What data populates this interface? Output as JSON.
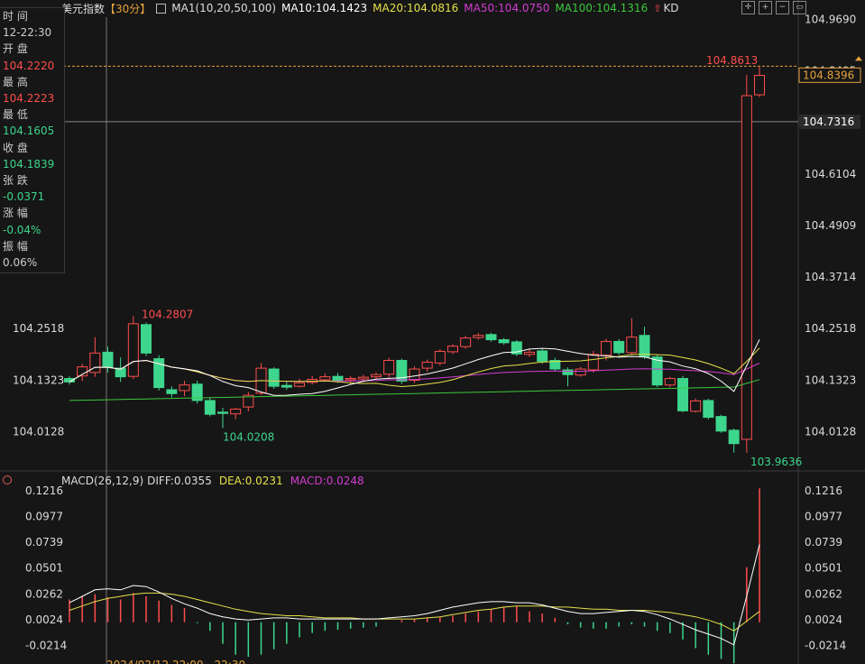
{
  "header": {
    "instrument": "美元指数",
    "period": "【30分】",
    "ma_label": "MA1(10,20,50,100)",
    "ma10": "MA10:104.1423",
    "ma20": "MA20:104.0816",
    "ma50": "MA50:104.0750",
    "ma100": "MA100:104.1316",
    "kd": "KD"
  },
  "info_panel": {
    "time_label": "时 间",
    "time_value": "12-22:30",
    "open_label": "开 盘",
    "open_value": "104.2220",
    "high_label": "最 高",
    "high_value": "104.2223",
    "low_label": "最 低",
    "low_value": "104.1605",
    "close_label": "收 盘",
    "close_value": "104.1839",
    "change_label": "张 跌",
    "change_value": "-0.0371",
    "pct_label": "涨 幅",
    "pct_value": "-0.04%",
    "amp_label": "振 幅",
    "amp_value": "0.06%"
  },
  "macd_header": {
    "label": "MACD(26,12,9)",
    "diff": "DIFF:0.0355",
    "dea": "DEA:0.0231",
    "macd": "MACD:0.0248"
  },
  "bottom_time": "2024/02/12 22:00 - 22:30",
  "colors": {
    "up": "#ff4d4d",
    "down": "#3dd68c",
    "ma10": "#ffffff",
    "ma20": "#e6e04a",
    "ma50": "#d23cd2",
    "ma100": "#3cc83c",
    "bg": "#161616"
  },
  "chart_data": {
    "type": "candlestick",
    "y_axis_ticks": [
      "104.9690",
      "104.8495",
      "104.7300",
      "104.6104",
      "104.4909",
      "104.3714",
      "104.2518",
      "104.1323",
      "104.0128"
    ],
    "left_axis_ticks": [
      "104.2518",
      "104.1323",
      "104.0128"
    ],
    "ylim": [
      103.93,
      104.97
    ],
    "price_tag_current": "104.8396",
    "price_tag_crosshair": "104.7316",
    "annotations": [
      {
        "text": "104.2807",
        "type": "high"
      },
      {
        "text": "104.0208",
        "type": "low"
      },
      {
        "text": "104.8613",
        "type": "high"
      },
      {
        "text": "103.9636",
        "type": "low"
      }
    ],
    "candles": [
      {
        "o": 104.136,
        "c": 104.128,
        "h": 104.141,
        "l": 104.122
      },
      {
        "o": 104.142,
        "c": 104.163,
        "h": 104.17,
        "l": 104.13
      },
      {
        "o": 104.15,
        "c": 104.195,
        "h": 104.232,
        "l": 104.14
      },
      {
        "o": 104.197,
        "c": 104.162,
        "h": 104.21,
        "l": 104.15
      },
      {
        "o": 104.16,
        "c": 104.14,
        "h": 104.185,
        "l": 104.128
      },
      {
        "o": 104.141,
        "c": 104.263,
        "h": 104.281,
        "l": 104.135
      },
      {
        "o": 104.261,
        "c": 104.195,
        "h": 104.266,
        "l": 104.188
      },
      {
        "o": 104.182,
        "c": 104.115,
        "h": 104.19,
        "l": 104.108
      },
      {
        "o": 104.11,
        "c": 104.101,
        "h": 104.118,
        "l": 104.092
      },
      {
        "o": 104.108,
        "c": 104.121,
        "h": 104.131,
        "l": 104.095
      },
      {
        "o": 104.123,
        "c": 104.085,
        "h": 104.131,
        "l": 104.078
      },
      {
        "o": 104.085,
        "c": 104.053,
        "h": 104.092,
        "l": 104.048
      },
      {
        "o": 104.058,
        "c": 104.055,
        "h": 104.068,
        "l": 104.021
      },
      {
        "o": 104.054,
        "c": 104.065,
        "h": 104.068,
        "l": 104.042
      },
      {
        "o": 104.07,
        "c": 104.097,
        "h": 104.105,
        "l": 104.06
      },
      {
        "o": 104.102,
        "c": 104.16,
        "h": 104.172,
        "l": 104.098
      },
      {
        "o": 104.158,
        "c": 104.118,
        "h": 104.162,
        "l": 104.112
      },
      {
        "o": 104.12,
        "c": 104.116,
        "h": 104.128,
        "l": 104.11
      },
      {
        "o": 104.118,
        "c": 104.126,
        "h": 104.135,
        "l": 104.115
      },
      {
        "o": 104.127,
        "c": 104.134,
        "h": 104.142,
        "l": 104.122
      },
      {
        "o": 104.133,
        "c": 104.14,
        "h": 104.147,
        "l": 104.129
      },
      {
        "o": 104.141,
        "c": 104.131,
        "h": 104.149,
        "l": 104.126
      },
      {
        "o": 104.133,
        "c": 104.136,
        "h": 104.142,
        "l": 104.126
      },
      {
        "o": 104.135,
        "c": 104.139,
        "h": 104.145,
        "l": 104.128
      },
      {
        "o": 104.14,
        "c": 104.145,
        "h": 104.15,
        "l": 104.135
      },
      {
        "o": 104.146,
        "c": 104.178,
        "h": 104.184,
        "l": 104.138
      },
      {
        "o": 104.178,
        "c": 104.13,
        "h": 104.182,
        "l": 104.123
      },
      {
        "o": 104.132,
        "c": 104.158,
        "h": 104.164,
        "l": 104.126
      },
      {
        "o": 104.16,
        "c": 104.174,
        "h": 104.18,
        "l": 104.152
      },
      {
        "o": 104.172,
        "c": 104.199,
        "h": 104.204,
        "l": 104.166
      },
      {
        "o": 104.198,
        "c": 104.211,
        "h": 104.216,
        "l": 104.193
      },
      {
        "o": 104.21,
        "c": 104.23,
        "h": 104.235,
        "l": 104.205
      },
      {
        "o": 104.231,
        "c": 104.236,
        "h": 104.241,
        "l": 104.226
      },
      {
        "o": 104.238,
        "c": 104.226,
        "h": 104.242,
        "l": 104.221
      },
      {
        "o": 104.226,
        "c": 104.219,
        "h": 104.23,
        "l": 104.214
      },
      {
        "o": 104.221,
        "c": 104.193,
        "h": 104.225,
        "l": 104.188
      },
      {
        "o": 104.192,
        "c": 104.197,
        "h": 104.203,
        "l": 104.186
      },
      {
        "o": 104.2,
        "c": 104.176,
        "h": 104.205,
        "l": 104.17
      },
      {
        "o": 104.178,
        "c": 104.158,
        "h": 104.184,
        "l": 104.152
      },
      {
        "o": 104.156,
        "c": 104.145,
        "h": 104.162,
        "l": 104.118
      },
      {
        "o": 104.144,
        "c": 104.158,
        "h": 104.163,
        "l": 104.14
      },
      {
        "o": 104.156,
        "c": 104.192,
        "h": 104.2,
        "l": 104.15
      },
      {
        "o": 104.19,
        "c": 104.222,
        "h": 104.228,
        "l": 104.178
      },
      {
        "o": 104.222,
        "c": 104.196,
        "h": 104.228,
        "l": 104.19
      },
      {
        "o": 104.196,
        "c": 104.232,
        "h": 104.276,
        "l": 104.19
      },
      {
        "o": 104.236,
        "c": 104.186,
        "h": 104.256,
        "l": 104.181
      },
      {
        "o": 104.186,
        "c": 104.121,
        "h": 104.192,
        "l": 104.116
      },
      {
        "o": 104.121,
        "c": 104.136,
        "h": 104.14,
        "l": 104.116
      },
      {
        "o": 104.136,
        "c": 104.061,
        "h": 104.142,
        "l": 104.058
      },
      {
        "o": 104.06,
        "c": 104.084,
        "h": 104.09,
        "l": 104.057
      },
      {
        "o": 104.085,
        "c": 104.046,
        "h": 104.089,
        "l": 104.041
      },
      {
        "o": 104.048,
        "c": 104.014,
        "h": 104.052,
        "l": 104.01
      },
      {
        "o": 104.016,
        "c": 103.985,
        "h": 104.02,
        "l": 103.964
      },
      {
        "o": 103.995,
        "c": 104.792,
        "h": 104.84,
        "l": 103.964
      },
      {
        "o": 104.794,
        "c": 104.839,
        "h": 104.861,
        "l": 104.789
      }
    ],
    "macd_axis_ticks": [
      "0.1216",
      "0.0977",
      "0.0739",
      "0.0501",
      "0.0262",
      "0.0024",
      "-0.0214"
    ],
    "macd_ylim": [
      -0.037,
      0.125
    ],
    "macd_bars": [
      0.021,
      0.024,
      0.026,
      0.023,
      0.021,
      0.027,
      0.024,
      0.02,
      0.016,
      0.013,
      -0.001,
      -0.008,
      -0.02,
      -0.03,
      -0.032,
      -0.03,
      -0.025,
      -0.02,
      -0.014,
      -0.01,
      -0.008,
      -0.007,
      -0.006,
      -0.005,
      -0.004,
      0.0,
      0.002,
      0.003,
      0.004,
      0.005,
      0.006,
      0.008,
      0.01,
      0.012,
      0.014,
      0.015,
      0.01,
      0.008,
      0.004,
      -0.002,
      -0.005,
      -0.006,
      -0.006,
      -0.004,
      -0.002,
      -0.004,
      -0.008,
      -0.01,
      -0.016,
      -0.024,
      -0.03,
      -0.034,
      -0.038,
      0.051,
      0.124
    ],
    "diff_line": [
      0.018,
      0.024,
      0.03,
      0.031,
      0.03,
      0.034,
      0.033,
      0.028,
      0.022,
      0.017,
      0.013,
      0.008,
      0.005,
      0.003,
      0.002,
      0.003,
      0.004,
      0.004,
      0.003,
      0.003,
      0.003,
      0.003,
      0.003,
      0.003,
      0.003,
      0.004,
      0.005,
      0.006,
      0.008,
      0.011,
      0.014,
      0.016,
      0.018,
      0.019,
      0.019,
      0.018,
      0.018,
      0.016,
      0.013,
      0.01,
      0.008,
      0.008,
      0.009,
      0.01,
      0.011,
      0.01,
      0.007,
      0.003,
      -0.002,
      -0.007,
      -0.011,
      -0.015,
      -0.021,
      0.024,
      0.072
    ],
    "dea_line": [
      0.011,
      0.015,
      0.019,
      0.022,
      0.024,
      0.026,
      0.027,
      0.027,
      0.026,
      0.024,
      0.021,
      0.018,
      0.015,
      0.012,
      0.01,
      0.008,
      0.007,
      0.006,
      0.006,
      0.005,
      0.004,
      0.004,
      0.004,
      0.003,
      0.003,
      0.003,
      0.003,
      0.003,
      0.004,
      0.005,
      0.007,
      0.009,
      0.011,
      0.012,
      0.014,
      0.015,
      0.015,
      0.015,
      0.014,
      0.014,
      0.013,
      0.012,
      0.012,
      0.011,
      0.011,
      0.011,
      0.01,
      0.009,
      0.007,
      0.005,
      0.002,
      -0.002,
      -0.008,
      0.001,
      0.01
    ]
  }
}
